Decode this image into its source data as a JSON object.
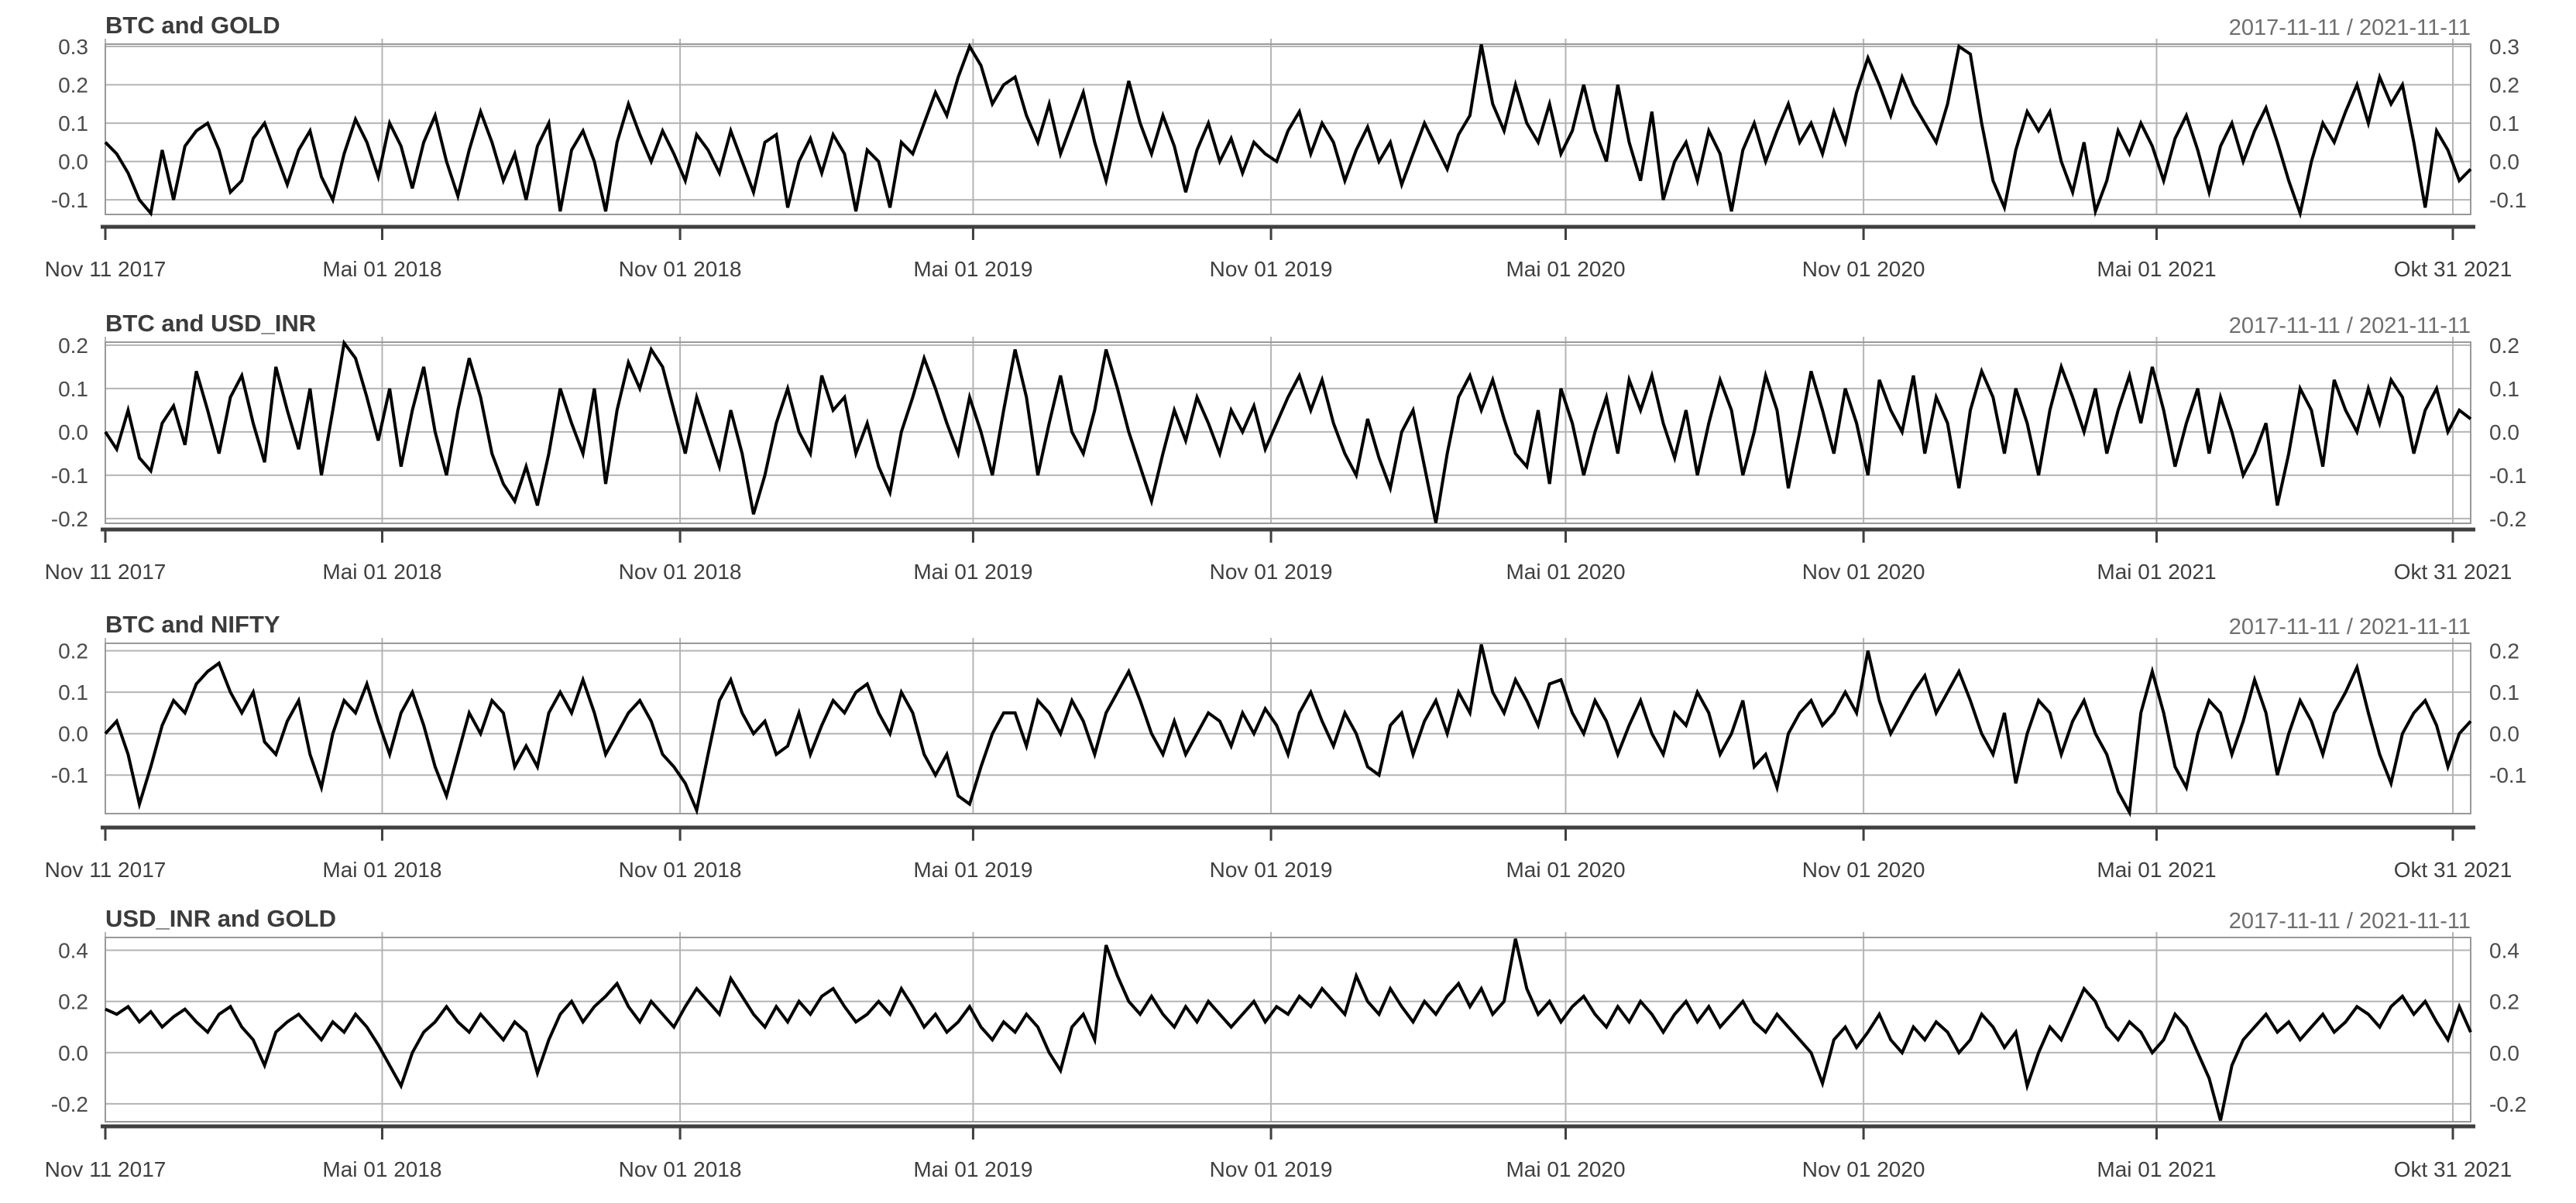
{
  "page": {
    "background": "#ffffff"
  },
  "styles": {
    "series_color": "#000000",
    "grid_color": "#b4b4b4",
    "box_color": "#999999",
    "axis_color": "#3f3f3f",
    "title_color": "#3b3b3b",
    "period_color": "#6e6e6e",
    "tick_label_color": "#4b4b4b"
  },
  "x_axis": {
    "tick_labels": [
      "Nov 11 2017",
      "Mai 01 2018",
      "Nov 01 2018",
      "Mai 01 2019",
      "Nov 01 2019",
      "Mai 01 2020",
      "Nov 01 2020",
      "Mai 01 2021",
      "Okt 31 2021"
    ],
    "tick_day_offsets": [
      0,
      171,
      355,
      536,
      720,
      902,
      1086,
      1267,
      1450
    ],
    "total_days": 1461
  },
  "chart_data": [
    {
      "type": "line",
      "title": "BTC and GOLD",
      "period_label": "2017-11-11 / 2021-11-11",
      "x_start": "2017-11-11",
      "x_end": "2021-11-11",
      "sampling": "weekly approximation read from plot",
      "yticks": [
        -0.1,
        0.0,
        0.1,
        0.2,
        0.3
      ],
      "ylim": [
        -0.138,
        0.306
      ],
      "grid": true,
      "legend": "none",
      "values": [
        0.05,
        0.02,
        -0.03,
        -0.1,
        -0.135,
        0.03,
        -0.1,
        0.04,
        0.08,
        0.1,
        0.03,
        -0.08,
        -0.05,
        0.06,
        0.1,
        0.02,
        -0.06,
        0.03,
        0.08,
        -0.04,
        -0.1,
        0.02,
        0.11,
        0.05,
        -0.04,
        0.1,
        0.04,
        -0.07,
        0.05,
        0.12,
        0.0,
        -0.09,
        0.03,
        0.13,
        0.05,
        -0.05,
        0.02,
        -0.1,
        0.04,
        0.1,
        -0.13,
        0.03,
        0.08,
        0.0,
        -0.13,
        0.05,
        0.15,
        0.07,
        0.0,
        0.08,
        0.02,
        -0.05,
        0.07,
        0.03,
        -0.03,
        0.08,
        0.0,
        -0.08,
        0.05,
        0.07,
        -0.12,
        0.0,
        0.06,
        -0.03,
        0.07,
        0.02,
        -0.13,
        0.03,
        0.0,
        -0.12,
        0.05,
        0.02,
        0.1,
        0.18,
        0.12,
        0.22,
        0.3,
        0.25,
        0.15,
        0.2,
        0.22,
        0.12,
        0.05,
        0.15,
        0.02,
        0.1,
        0.18,
        0.05,
        -0.05,
        0.08,
        0.21,
        0.1,
        0.02,
        0.12,
        0.04,
        -0.08,
        0.03,
        0.1,
        0.0,
        0.06,
        -0.03,
        0.05,
        0.02,
        0.0,
        0.08,
        0.13,
        0.02,
        0.1,
        0.05,
        -0.05,
        0.03,
        0.09,
        0.0,
        0.05,
        -0.06,
        0.02,
        0.1,
        0.04,
        -0.02,
        0.07,
        0.12,
        0.305,
        0.15,
        0.08,
        0.2,
        0.1,
        0.05,
        0.15,
        0.02,
        0.08,
        0.2,
        0.08,
        0.0,
        0.2,
        0.05,
        -0.05,
        0.13,
        -0.1,
        0.0,
        0.05,
        -0.05,
        0.08,
        0.02,
        -0.13,
        0.03,
        0.1,
        0.0,
        0.08,
        0.15,
        0.05,
        0.1,
        0.02,
        0.13,
        0.05,
        0.18,
        0.27,
        0.2,
        0.12,
        0.22,
        0.15,
        0.1,
        0.05,
        0.15,
        0.3,
        0.28,
        0.1,
        -0.05,
        -0.12,
        0.03,
        0.13,
        0.08,
        0.13,
        0.0,
        -0.08,
        0.05,
        -0.13,
        -0.05,
        0.08,
        0.02,
        0.1,
        0.04,
        -0.05,
        0.06,
        0.12,
        0.03,
        -0.08,
        0.04,
        0.1,
        0.0,
        0.08,
        0.14,
        0.05,
        -0.05,
        -0.135,
        0.0,
        0.1,
        0.05,
        0.13,
        0.2,
        0.1,
        0.22,
        0.15,
        0.2,
        0.05,
        -0.12,
        0.08,
        0.03,
        -0.05,
        -0.02
      ]
    },
    {
      "type": "line",
      "title": "BTC and USD_INR",
      "period_label": "2017-11-11 / 2021-11-11",
      "x_start": "2017-11-11",
      "x_end": "2021-11-11",
      "sampling": "weekly approximation read from plot",
      "yticks": [
        -0.2,
        -0.1,
        0.0,
        0.1,
        0.2
      ],
      "ylim": [
        -0.211,
        0.207
      ],
      "grid": true,
      "legend": "none",
      "values": [
        0.0,
        -0.04,
        0.05,
        -0.06,
        -0.09,
        0.02,
        0.06,
        -0.03,
        0.14,
        0.05,
        -0.05,
        0.08,
        0.13,
        0.02,
        -0.07,
        0.15,
        0.05,
        -0.04,
        0.1,
        -0.1,
        0.05,
        0.205,
        0.17,
        0.08,
        -0.02,
        0.1,
        -0.08,
        0.05,
        0.15,
        0.0,
        -0.1,
        0.05,
        0.17,
        0.08,
        -0.05,
        -0.12,
        -0.16,
        -0.08,
        -0.17,
        -0.05,
        0.1,
        0.02,
        -0.05,
        0.1,
        -0.12,
        0.05,
        0.16,
        0.1,
        0.19,
        0.15,
        0.05,
        -0.05,
        0.08,
        0.0,
        -0.08,
        0.05,
        -0.05,
        -0.19,
        -0.1,
        0.02,
        0.1,
        0.0,
        -0.05,
        0.13,
        0.05,
        0.08,
        -0.05,
        0.02,
        -0.08,
        -0.14,
        0.0,
        0.08,
        0.17,
        0.1,
        0.02,
        -0.05,
        0.08,
        0.0,
        -0.1,
        0.05,
        0.19,
        0.08,
        -0.1,
        0.02,
        0.13,
        0.0,
        -0.05,
        0.05,
        0.19,
        0.1,
        0.0,
        -0.08,
        -0.16,
        -0.05,
        0.05,
        -0.02,
        0.08,
        0.02,
        -0.05,
        0.05,
        0.0,
        0.06,
        -0.04,
        0.02,
        0.08,
        0.13,
        0.05,
        0.12,
        0.02,
        -0.05,
        -0.1,
        0.03,
        -0.06,
        -0.13,
        0.0,
        0.05,
        -0.08,
        -0.21,
        -0.05,
        0.08,
        0.13,
        0.05,
        0.12,
        0.03,
        -0.05,
        -0.08,
        0.05,
        -0.12,
        0.1,
        0.02,
        -0.1,
        0.0,
        0.08,
        -0.05,
        0.12,
        0.05,
        0.13,
        0.02,
        -0.06,
        0.05,
        -0.1,
        0.02,
        0.12,
        0.05,
        -0.1,
        0.0,
        0.13,
        0.05,
        -0.13,
        0.0,
        0.14,
        0.05,
        -0.05,
        0.1,
        0.02,
        -0.1,
        0.12,
        0.05,
        0.0,
        0.13,
        -0.05,
        0.08,
        0.02,
        -0.13,
        0.05,
        0.14,
        0.08,
        -0.05,
        0.1,
        0.02,
        -0.1,
        0.05,
        0.15,
        0.08,
        0.0,
        0.1,
        -0.05,
        0.05,
        0.13,
        0.02,
        0.15,
        0.05,
        -0.08,
        0.02,
        0.1,
        -0.05,
        0.08,
        0.0,
        -0.1,
        -0.05,
        0.02,
        -0.17,
        -0.05,
        0.1,
        0.05,
        -0.08,
        0.12,
        0.05,
        0.0,
        0.1,
        0.02,
        0.12,
        0.08,
        -0.05,
        0.05,
        0.1,
        0.0,
        0.05,
        0.03
      ]
    },
    {
      "type": "line",
      "title": "BTC and NIFTY",
      "period_label": "2017-11-11 / 2021-11-11",
      "x_start": "2017-11-11",
      "x_end": "2021-11-11",
      "sampling": "weekly approximation read from plot",
      "yticks": [
        -0.1,
        0.0,
        0.1,
        0.2
      ],
      "ylim": [
        -0.193,
        0.218
      ],
      "grid": true,
      "legend": "none",
      "values": [
        0.0,
        0.03,
        -0.05,
        -0.17,
        -0.08,
        0.02,
        0.08,
        0.05,
        0.12,
        0.15,
        0.17,
        0.1,
        0.05,
        0.1,
        -0.02,
        -0.05,
        0.03,
        0.08,
        -0.05,
        -0.13,
        0.0,
        0.08,
        0.05,
        0.12,
        0.03,
        -0.05,
        0.05,
        0.1,
        0.02,
        -0.08,
        -0.15,
        -0.05,
        0.05,
        0.0,
        0.08,
        0.05,
        -0.08,
        -0.03,
        -0.08,
        0.05,
        0.1,
        0.05,
        0.13,
        0.05,
        -0.05,
        0.0,
        0.05,
        0.08,
        0.03,
        -0.05,
        -0.08,
        -0.12,
        -0.185,
        -0.05,
        0.08,
        0.13,
        0.05,
        0.0,
        0.03,
        -0.05,
        -0.03,
        0.05,
        -0.05,
        0.02,
        0.08,
        0.05,
        0.1,
        0.12,
        0.05,
        0.0,
        0.1,
        0.05,
        -0.05,
        -0.1,
        -0.05,
        -0.15,
        -0.17,
        -0.08,
        0.0,
        0.05,
        0.05,
        -0.03,
        0.08,
        0.05,
        0.0,
        0.08,
        0.03,
        -0.05,
        0.05,
        0.1,
        0.15,
        0.08,
        0.0,
        -0.05,
        0.03,
        -0.05,
        0.0,
        0.05,
        0.03,
        -0.03,
        0.05,
        0.0,
        0.06,
        0.02,
        -0.05,
        0.05,
        0.1,
        0.03,
        -0.03,
        0.05,
        0.0,
        -0.08,
        -0.1,
        0.02,
        0.05,
        -0.05,
        0.03,
        0.08,
        0.0,
        0.1,
        0.05,
        0.215,
        0.1,
        0.05,
        0.13,
        0.08,
        0.02,
        0.12,
        0.13,
        0.05,
        0.0,
        0.08,
        0.03,
        -0.05,
        0.02,
        0.08,
        0.0,
        -0.05,
        0.05,
        0.02,
        0.1,
        0.05,
        -0.05,
        0.0,
        0.08,
        -0.08,
        -0.05,
        -0.13,
        0.0,
        0.05,
        0.08,
        0.02,
        0.05,
        0.1,
        0.05,
        0.2,
        0.08,
        0.0,
        0.05,
        0.1,
        0.14,
        0.05,
        0.1,
        0.15,
        0.08,
        0.0,
        -0.05,
        0.05,
        -0.12,
        0.0,
        0.08,
        0.05,
        -0.05,
        0.03,
        0.08,
        0.0,
        -0.05,
        -0.14,
        -0.19,
        0.05,
        0.15,
        0.05,
        -0.08,
        -0.13,
        0.0,
        0.08,
        0.05,
        -0.05,
        0.03,
        0.13,
        0.05,
        -0.1,
        0.0,
        0.08,
        0.03,
        -0.05,
        0.05,
        0.1,
        0.16,
        0.05,
        -0.05,
        -0.12,
        0.0,
        0.05,
        0.08,
        0.02,
        -0.08,
        0.0,
        0.03
      ]
    },
    {
      "type": "line",
      "title": "USD_INR and GOLD",
      "period_label": "2017-11-11 / 2021-11-11",
      "x_start": "2017-11-11",
      "x_end": "2021-11-11",
      "sampling": "weekly approximation read from plot",
      "yticks": [
        -0.2,
        0.0,
        0.2,
        0.4
      ],
      "ylim": [
        -0.27,
        0.45
      ],
      "grid": true,
      "legend": "none",
      "values": [
        0.17,
        0.15,
        0.18,
        0.12,
        0.16,
        0.1,
        0.14,
        0.17,
        0.12,
        0.08,
        0.15,
        0.18,
        0.1,
        0.05,
        -0.05,
        0.08,
        0.12,
        0.15,
        0.1,
        0.05,
        0.12,
        0.08,
        0.15,
        0.1,
        0.03,
        -0.05,
        -0.13,
        0.0,
        0.08,
        0.12,
        0.18,
        0.12,
        0.08,
        0.15,
        0.1,
        0.05,
        0.12,
        0.08,
        -0.08,
        0.05,
        0.15,
        0.2,
        0.12,
        0.18,
        0.22,
        0.27,
        0.18,
        0.12,
        0.2,
        0.15,
        0.1,
        0.18,
        0.25,
        0.2,
        0.15,
        0.29,
        0.22,
        0.15,
        0.1,
        0.18,
        0.12,
        0.2,
        0.15,
        0.22,
        0.25,
        0.18,
        0.12,
        0.15,
        0.2,
        0.15,
        0.25,
        0.18,
        0.1,
        0.15,
        0.08,
        0.12,
        0.18,
        0.1,
        0.05,
        0.12,
        0.08,
        0.15,
        0.1,
        0.0,
        -0.07,
        0.1,
        0.15,
        0.05,
        0.42,
        0.3,
        0.2,
        0.15,
        0.22,
        0.15,
        0.1,
        0.18,
        0.12,
        0.2,
        0.15,
        0.1,
        0.15,
        0.2,
        0.12,
        0.18,
        0.15,
        0.22,
        0.18,
        0.25,
        0.2,
        0.15,
        0.3,
        0.2,
        0.15,
        0.25,
        0.18,
        0.12,
        0.2,
        0.15,
        0.22,
        0.27,
        0.18,
        0.25,
        0.15,
        0.2,
        0.445,
        0.25,
        0.15,
        0.2,
        0.12,
        0.18,
        0.22,
        0.15,
        0.1,
        0.18,
        0.12,
        0.2,
        0.15,
        0.08,
        0.15,
        0.2,
        0.12,
        0.18,
        0.1,
        0.15,
        0.2,
        0.12,
        0.08,
        0.15,
        0.1,
        0.05,
        0.0,
        -0.12,
        0.05,
        0.1,
        0.02,
        0.08,
        0.15,
        0.05,
        0.0,
        0.1,
        0.05,
        0.12,
        0.08,
        0.0,
        0.05,
        0.15,
        0.1,
        0.02,
        0.08,
        -0.13,
        0.0,
        0.1,
        0.05,
        0.15,
        0.25,
        0.2,
        0.1,
        0.05,
        0.12,
        0.08,
        0.0,
        0.05,
        0.15,
        0.1,
        0.0,
        -0.1,
        -0.265,
        -0.05,
        0.05,
        0.1,
        0.15,
        0.08,
        0.12,
        0.05,
        0.1,
        0.15,
        0.08,
        0.12,
        0.18,
        0.15,
        0.1,
        0.18,
        0.22,
        0.15,
        0.2,
        0.12,
        0.05,
        0.18,
        0.08
      ]
    }
  ]
}
